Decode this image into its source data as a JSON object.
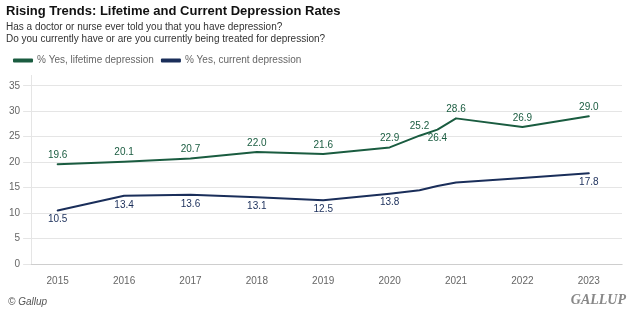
{
  "chart_data": {
    "type": "line",
    "title": "Rising Trends: Lifetime and Current Depression Rates",
    "subtitle": [
      "Has a doctor or nurse ever told you that you have depression?",
      "Do you currently have or are you currently being treated for depression?"
    ],
    "annotations": [
      "© Gallup",
      "GALLUP"
    ],
    "x": [
      2015,
      2016,
      2017,
      2018,
      2019,
      2020,
      2020.45,
      2020.72,
      2021,
      2022,
      2023
    ],
    "xlim": [
      2014.6,
      2023.5
    ],
    "xticks": [
      2015,
      2016,
      2017,
      2018,
      2019,
      2020,
      2021,
      2022,
      2023
    ],
    "ylim": [
      0,
      37
    ],
    "yticks": [
      0,
      5,
      10,
      15,
      20,
      25,
      30,
      35
    ],
    "grid": "y",
    "legend": "upper left",
    "data_labels": true,
    "series": [
      {
        "name": "% Yes, lifetime depression",
        "color": "#1a5c40",
        "values": [
          19.6,
          20.1,
          20.7,
          22.0,
          21.6,
          22.9,
          25.2,
          26.4,
          28.6,
          26.9,
          29.0
        ],
        "value_labels": [
          "19.6",
          "20.1",
          "20.7",
          "22.0",
          "21.6",
          "22.9",
          "25.2",
          "26.4",
          "28.6",
          "26.9",
          "29.0"
        ]
      },
      {
        "name": "% Yes, current depression",
        "color": "#1a2e5a",
        "values": [
          10.5,
          13.4,
          13.6,
          13.1,
          12.5,
          13.8,
          14.5,
          15.3,
          16.0,
          16.9,
          17.8
        ],
        "value_labels": [
          "10.5",
          "13.4",
          "13.6",
          "13.1",
          "12.5",
          "13.8",
          null,
          null,
          null,
          null,
          "17.8"
        ]
      }
    ]
  }
}
